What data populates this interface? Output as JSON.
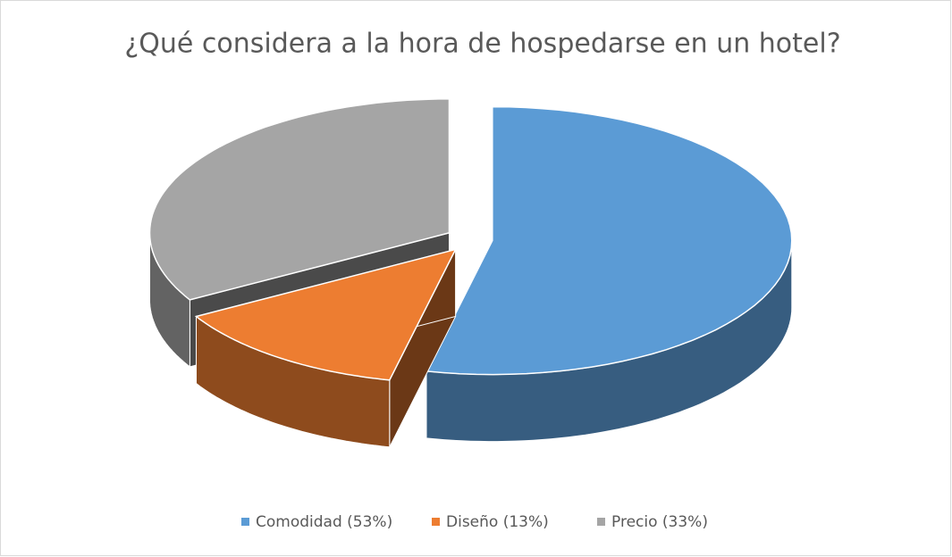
{
  "chart_data": {
    "type": "pie3d",
    "title": "¿Qué considera a la hora de hospedarse en un hotel?",
    "categories": [
      "Comodidad (53%)",
      "Diseño (13%)",
      "Precio (33%)"
    ],
    "values": [
      53,
      13,
      33
    ],
    "colors": [
      "#5b9bd5",
      "#ed7d31",
      "#a5a5a5"
    ],
    "legend": "bottom"
  }
}
